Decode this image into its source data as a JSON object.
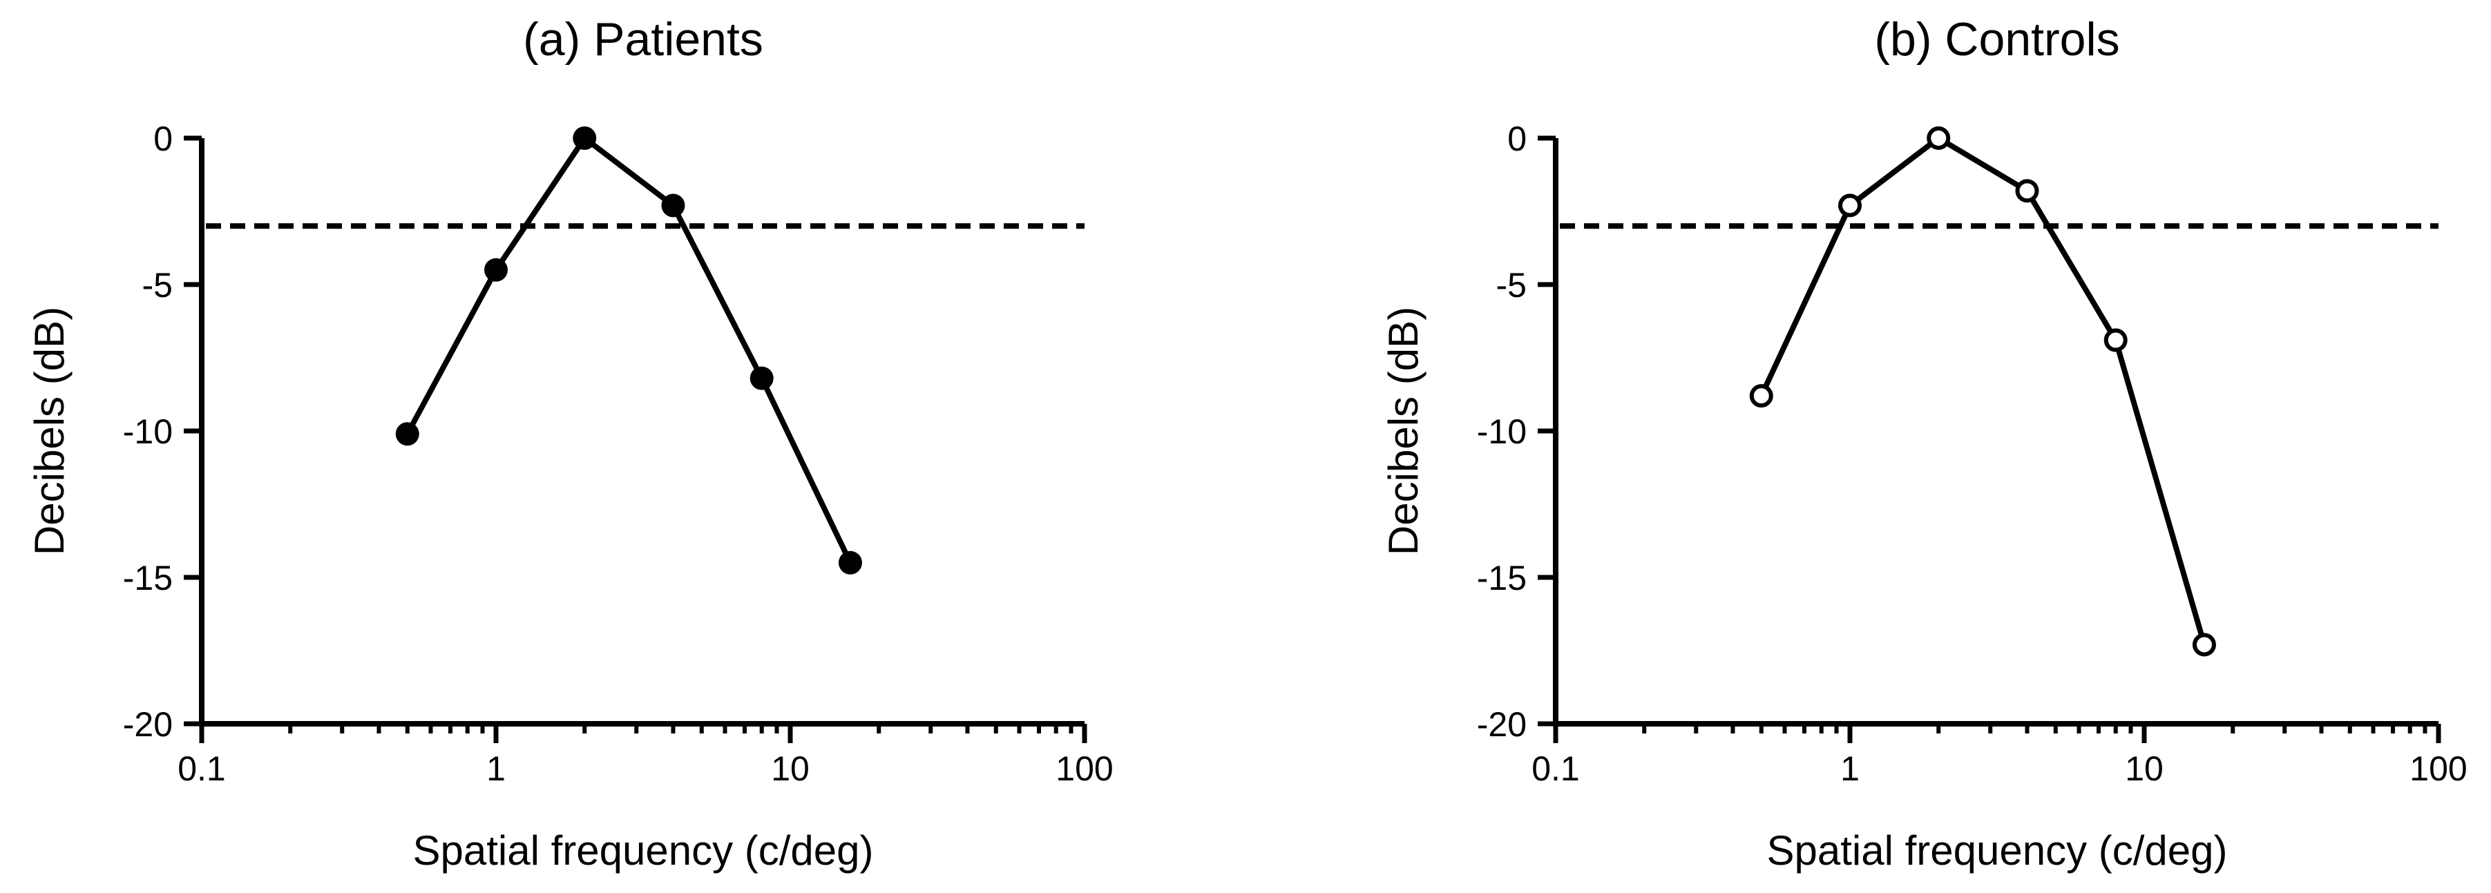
{
  "chart_data": [
    {
      "type": "line",
      "title": "(a) Patients",
      "xlabel": "Spatial frequency (c/deg)",
      "ylabel": "Decibels (dB)",
      "xscale": "log",
      "xlim": [
        0.1,
        100
      ],
      "ylim": [
        -20,
        0
      ],
      "xticks": [
        "0.1",
        "1",
        "10",
        "100"
      ],
      "yticks": [
        "0",
        "-5",
        "-10",
        "-15",
        "-20"
      ],
      "reference_line": {
        "y": -3,
        "style": "dashed"
      },
      "marker": "filled-circle",
      "grid": false,
      "series": [
        {
          "x": [
            0.5,
            1,
            2,
            4,
            8,
            16
          ],
          "y": [
            -10.1,
            -4.5,
            0,
            -2.3,
            -8.2,
            -14.5
          ]
        }
      ]
    },
    {
      "type": "line",
      "title": "(b) Controls",
      "xlabel": "Spatial frequency (c/deg)",
      "ylabel": "Decibels (dB)",
      "xscale": "log",
      "xlim": [
        0.1,
        100
      ],
      "ylim": [
        -20,
        0
      ],
      "xticks": [
        "0.1",
        "1",
        "10",
        "100"
      ],
      "yticks": [
        "0",
        "-5",
        "-10",
        "-15",
        "-20"
      ],
      "reference_line": {
        "y": -3,
        "style": "dashed"
      },
      "marker": "open-circle",
      "grid": false,
      "series": [
        {
          "x": [
            0.5,
            1,
            2,
            4,
            8,
            16
          ],
          "y": [
            -8.8,
            -2.3,
            0,
            -1.8,
            -6.9,
            -17.3
          ]
        }
      ]
    }
  ]
}
